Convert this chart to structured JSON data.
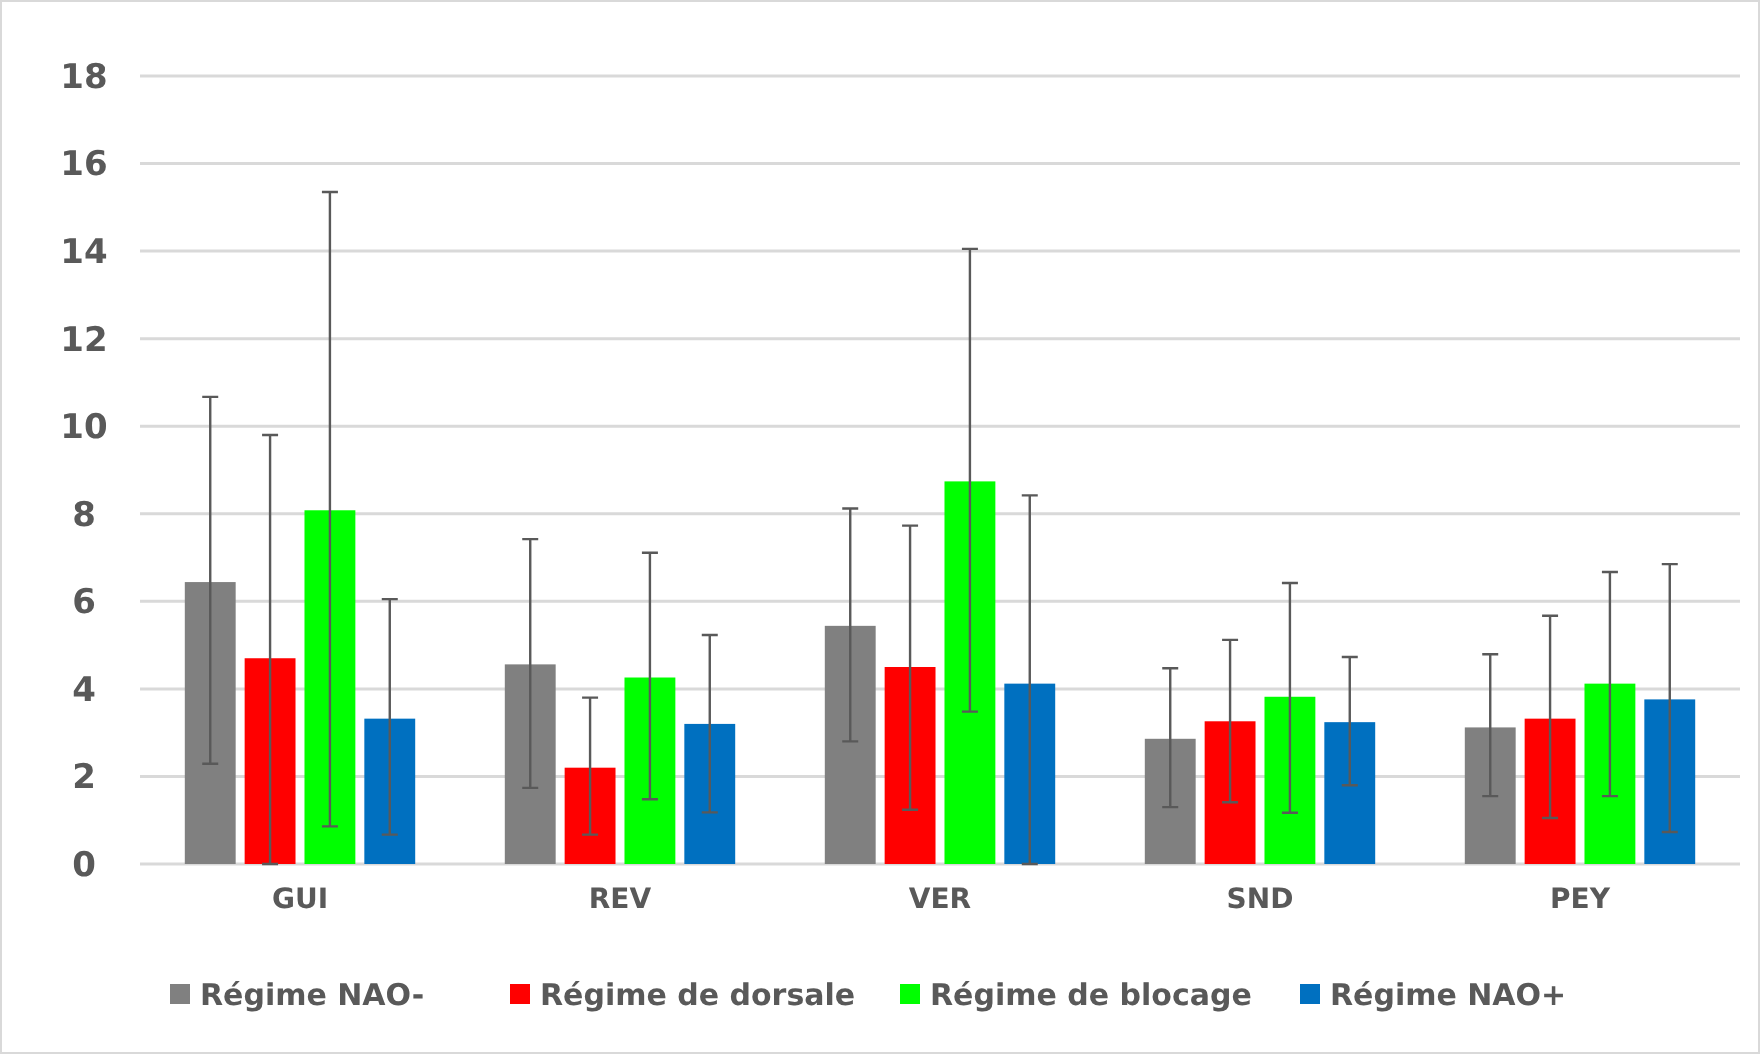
{
  "chart_data": {
    "type": "bar",
    "categories": [
      "GUI",
      "REV",
      "VER",
      "SND",
      "PEY"
    ],
    "series": [
      {
        "name": "Régime NAO-",
        "color": "#808080",
        "values": [
          6.44,
          4.56,
          5.44,
          2.86,
          3.12
        ],
        "errors": [
          [
            2.29,
            10.67
          ],
          [
            1.74,
            7.42
          ],
          [
            2.8,
            8.12
          ],
          [
            1.3,
            4.47
          ],
          [
            1.55,
            4.79
          ]
        ]
      },
      {
        "name": "Régime de dorsale",
        "color": "#ff0000",
        "values": [
          4.7,
          2.2,
          4.5,
          3.26,
          3.32
        ],
        "errors": [
          [
            0,
            9.8
          ],
          [
            0.67,
            3.8
          ],
          [
            1.24,
            7.73
          ],
          [
            1.41,
            5.12
          ],
          [
            1.05,
            5.67
          ]
        ]
      },
      {
        "name": "Régime de blocage",
        "color": "#00ff00",
        "values": [
          8.08,
          4.26,
          8.74,
          3.82,
          4.12
        ],
        "errors": [
          [
            0.86,
            15.35
          ],
          [
            1.48,
            7.11
          ],
          [
            3.48,
            14.05
          ],
          [
            1.17,
            6.42
          ],
          [
            1.55,
            6.67
          ]
        ]
      },
      {
        "name": "Régime NAO+",
        "color": "#0070c0",
        "values": [
          3.32,
          3.2,
          4.12,
          3.24,
          3.76
        ],
        "errors": [
          [
            0.67,
            6.05
          ],
          [
            1.18,
            5.23
          ],
          [
            0,
            8.42
          ],
          [
            1.8,
            4.73
          ],
          [
            0.73,
            6.85
          ]
        ]
      }
    ],
    "ylim": [
      0,
      18
    ],
    "yticks": [
      0,
      2,
      4,
      6,
      8,
      10,
      12,
      14,
      16,
      18
    ],
    "grid": "y",
    "legend": "bottom"
  }
}
